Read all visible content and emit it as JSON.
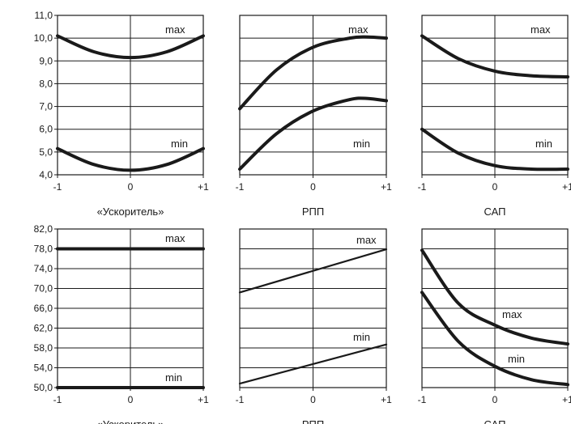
{
  "chart_data": [
    {
      "type": "line",
      "xlabel": "«Ускоритель»",
      "x_ticks": [
        "-1",
        "0",
        "+1"
      ],
      "y_ticks": [
        "4,0",
        "5,0",
        "6,0",
        "7,0",
        "8,0",
        "9,0",
        "10,0",
        "11,0"
      ],
      "ylim": [
        4,
        11
      ],
      "xlim": [
        -1,
        1
      ],
      "grid": true,
      "series": [
        {
          "name": "max",
          "x": [
            -1,
            -0.5,
            0,
            0.5,
            1
          ],
          "values": [
            10.1,
            9.4,
            9.15,
            9.4,
            10.1
          ]
        },
        {
          "name": "min",
          "x": [
            -1,
            -0.5,
            0,
            0.5,
            1
          ],
          "values": [
            5.15,
            4.45,
            4.2,
            4.45,
            5.15
          ]
        }
      ]
    },
    {
      "type": "line",
      "xlabel": "РПП",
      "x_ticks": [
        "-1",
        "0",
        "+1"
      ],
      "ylim": [
        4,
        11
      ],
      "xlim": [
        -1,
        1
      ],
      "grid": true,
      "series": [
        {
          "name": "max",
          "x": [
            -1,
            -0.5,
            0,
            0.5,
            0.75,
            1
          ],
          "values": [
            6.9,
            8.6,
            9.6,
            10.0,
            10.05,
            10.0
          ]
        },
        {
          "name": "min",
          "x": [
            -1,
            -0.5,
            0,
            0.5,
            0.75,
            1
          ],
          "values": [
            4.25,
            5.8,
            6.8,
            7.3,
            7.35,
            7.25
          ]
        }
      ]
    },
    {
      "type": "line",
      "xlabel": "САП",
      "x_ticks": [
        "-1",
        "0",
        "+1"
      ],
      "ylim": [
        4,
        11
      ],
      "xlim": [
        -1,
        1
      ],
      "grid": true,
      "series": [
        {
          "name": "max",
          "x": [
            -1,
            -0.5,
            0,
            0.5,
            1
          ],
          "values": [
            10.1,
            9.1,
            8.55,
            8.35,
            8.3
          ]
        },
        {
          "name": "min",
          "x": [
            -1,
            -0.5,
            0,
            0.5,
            1
          ],
          "values": [
            6.0,
            4.95,
            4.4,
            4.25,
            4.25
          ]
        }
      ]
    },
    {
      "type": "line",
      "xlabel": "«Ускоритель»",
      "x_ticks": [
        "-1",
        "0",
        "+1"
      ],
      "y_ticks": [
        "50,0",
        "54,0",
        "58,0",
        "62,0",
        "66,0",
        "70,0",
        "74,0",
        "78,0",
        "82,0"
      ],
      "ylim": [
        50,
        82
      ],
      "xlim": [
        -1,
        1
      ],
      "grid": true,
      "series": [
        {
          "name": "max",
          "x": [
            -1,
            1
          ],
          "values": [
            78.0,
            78.0
          ]
        },
        {
          "name": "min",
          "x": [
            -1,
            1
          ],
          "values": [
            50.0,
            50.0
          ]
        }
      ]
    },
    {
      "type": "line",
      "xlabel": "РПП",
      "x_ticks": [
        "-1",
        "0",
        "+1"
      ],
      "ylim": [
        50,
        82
      ],
      "xlim": [
        -1,
        1
      ],
      "grid": true,
      "series": [
        {
          "name": "max",
          "x": [
            -1,
            1
          ],
          "values": [
            69.2,
            77.9
          ]
        },
        {
          "name": "min",
          "x": [
            -1,
            1
          ],
          "values": [
            50.8,
            58.7
          ]
        }
      ]
    },
    {
      "type": "line",
      "xlabel": "САП",
      "x_ticks": [
        "-1",
        "0",
        "+1"
      ],
      "ylim": [
        50,
        82
      ],
      "xlim": [
        -1,
        1
      ],
      "grid": true,
      "series": [
        {
          "name": "max",
          "x": [
            -1,
            -0.5,
            0,
            0.5,
            1
          ],
          "values": [
            77.7,
            67.0,
            62.6,
            60.0,
            58.8
          ]
        },
        {
          "name": "min",
          "x": [
            -1,
            -0.5,
            0,
            0.5,
            1
          ],
          "values": [
            69.2,
            59.3,
            54.3,
            51.6,
            50.6
          ]
        }
      ]
    }
  ]
}
